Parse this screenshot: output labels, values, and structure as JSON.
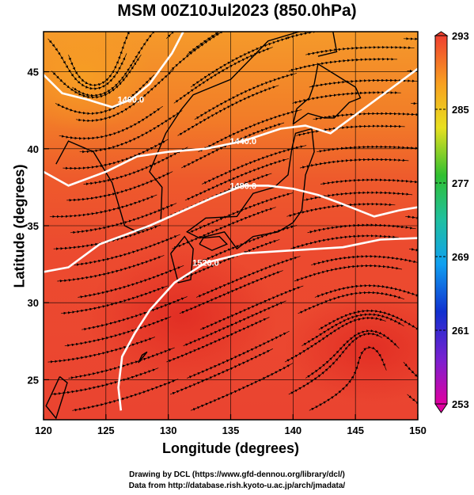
{
  "title": "MSM 00Z10Jul2023 (850.0hPa)",
  "x_axis": {
    "label": "Longitude (degrees)",
    "range": [
      120,
      150
    ],
    "ticks": [
      "120",
      "125",
      "130",
      "135",
      "140",
      "145",
      "150"
    ]
  },
  "y_axis": {
    "label": "Latitude  (degrees)",
    "range": [
      22.4,
      47.6
    ],
    "ticks": [
      "25",
      "30",
      "35",
      "40",
      "45"
    ]
  },
  "colorbar": {
    "range": [
      253,
      293
    ],
    "ticks": [
      "253",
      "261",
      "269",
      "277",
      "285",
      "293"
    ]
  },
  "contours": [
    {
      "label": "1400.0",
      "points": [
        [
          120.0,
          44.8
        ],
        [
          121.5,
          43.6
        ],
        [
          123.5,
          43.2
        ],
        [
          125.5,
          42.7
        ],
        [
          127.0,
          43.2
        ],
        [
          128.5,
          44.2
        ],
        [
          130.3,
          46.2
        ],
        [
          131.2,
          47.6
        ]
      ]
    },
    {
      "label": "1440.0",
      "points": [
        [
          120.0,
          38.5
        ],
        [
          122.0,
          37.6
        ],
        [
          125.0,
          38.5
        ],
        [
          127.5,
          39.5
        ],
        [
          130.0,
          39.8
        ],
        [
          133.0,
          40.0
        ],
        [
          136.0,
          40.5
        ],
        [
          139.0,
          41.3
        ],
        [
          141.0,
          41.5
        ],
        [
          143.0,
          41.0
        ],
        [
          145.5,
          42.5
        ],
        [
          148.0,
          44.0
        ],
        [
          150.0,
          45.2
        ]
      ]
    },
    {
      "label": "1480.0",
      "points": [
        [
          120.0,
          32.0
        ],
        [
          122.0,
          32.3
        ],
        [
          124.5,
          33.8
        ],
        [
          126.5,
          34.4
        ],
        [
          128.5,
          35.0
        ],
        [
          131.0,
          35.9
        ],
        [
          133.5,
          36.8
        ],
        [
          136.0,
          37.6
        ],
        [
          138.0,
          37.6
        ],
        [
          140.0,
          37.4
        ],
        [
          142.0,
          37.0
        ],
        [
          144.0,
          36.4
        ],
        [
          146.5,
          35.6
        ],
        [
          148.5,
          36.0
        ],
        [
          150.0,
          36.2
        ]
      ]
    },
    {
      "label": "1520.0",
      "points": [
        [
          126.2,
          23.0
        ],
        [
          126.0,
          24.5
        ],
        [
          126.3,
          26.5
        ],
        [
          127.3,
          28.0
        ],
        [
          128.5,
          29.5
        ],
        [
          130.5,
          31.3
        ],
        [
          133.0,
          32.6
        ],
        [
          136.0,
          33.2
        ],
        [
          140.0,
          33.4
        ],
        [
          144.0,
          33.6
        ],
        [
          147.0,
          34.1
        ],
        [
          150.0,
          34.2
        ]
      ]
    }
  ],
  "credits": {
    "line1": "Drawing by DCL (https://www.gfd-dennou.org/library/dcl/)",
    "line2": "Data from http://database.rish.kyoto-u.ac.jp/arch/jmadata/"
  },
  "colors": {
    "cold": "#d8188c",
    "mid": "#2fbf3a",
    "warm": "#e8382a",
    "contour": "#ffffff",
    "streamline": "#000000"
  }
}
